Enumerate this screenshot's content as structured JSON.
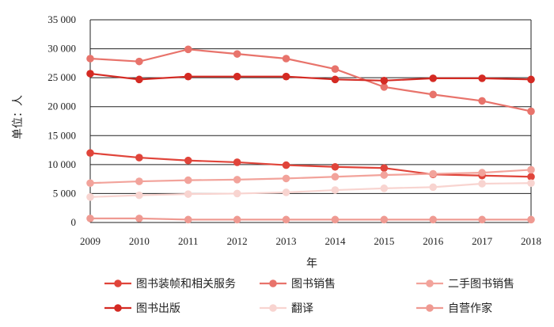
{
  "chart_data": {
    "type": "line",
    "xlabel": "年",
    "ylabel": "单位：人",
    "ylim": [
      0,
      35000
    ],
    "y_ticks": [
      "0",
      "5 000",
      "10 000",
      "15 000",
      "20 000",
      "25 000",
      "30 000",
      "35 000"
    ],
    "y_tick_values": [
      0,
      5000,
      10000,
      15000,
      20000,
      25000,
      30000,
      35000
    ],
    "grid": "horizontal",
    "legend_placement": "bottom",
    "x": [
      "2009",
      "2010",
      "2011",
      "2012",
      "2013",
      "2014",
      "2015",
      "2016",
      "2017",
      "2018"
    ],
    "series": [
      {
        "name": "图书装帧和相关服务",
        "color": "#e0443a",
        "values": [
          12000,
          11200,
          10700,
          10400,
          9900,
          9600,
          9400,
          8300,
          8100,
          7900
        ]
      },
      {
        "name": "图书销售",
        "color": "#e8736b",
        "values": [
          28300,
          27800,
          29900,
          29100,
          28300,
          26500,
          23400,
          22100,
          21000,
          19200
        ]
      },
      {
        "name": "二手图书销售",
        "color": "#f2a39b",
        "values": [
          6800,
          7100,
          7300,
          7400,
          7600,
          7900,
          8200,
          8400,
          8600,
          9100
        ]
      },
      {
        "name": "图书出版",
        "color": "#d42a23",
        "values": [
          25700,
          24700,
          25200,
          25200,
          25200,
          24700,
          24500,
          24900,
          24900,
          24700
        ]
      },
      {
        "name": "翻译",
        "color": "#f8d4d0",
        "values": [
          4400,
          4700,
          4900,
          5000,
          5200,
          5600,
          5900,
          6100,
          6700,
          6800
        ]
      },
      {
        "name": "自营作家",
        "color": "#ef9a92",
        "values": [
          700,
          700,
          500,
          500,
          500,
          500,
          500,
          500,
          500,
          500
        ]
      }
    ]
  }
}
